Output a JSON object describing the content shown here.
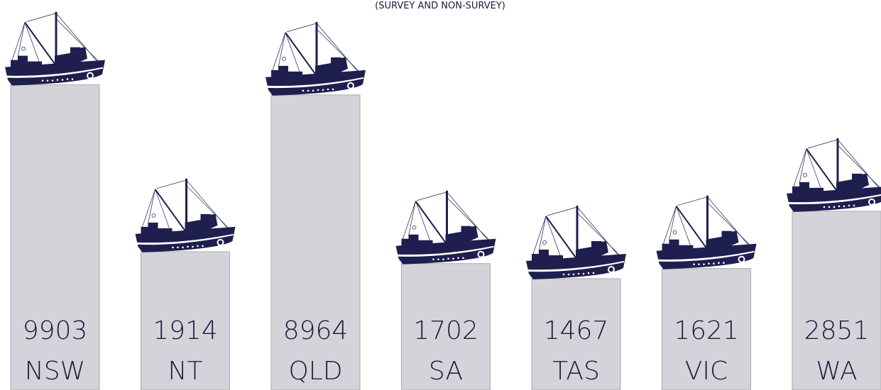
{
  "chart_data": {
    "type": "bar",
    "subtitle": "(SURVEY AND NON-SURVEY)",
    "categories": [
      "NSW",
      "NT",
      "QLD",
      "SA",
      "TAS",
      "VIC",
      "WA"
    ],
    "values": [
      9903,
      1914,
      8964,
      1702,
      1467,
      1621,
      2851
    ],
    "color": "#d5d3da",
    "icon_color": "#1f1f4f",
    "log_scale": true,
    "ylim": [
      490,
      20000
    ]
  }
}
